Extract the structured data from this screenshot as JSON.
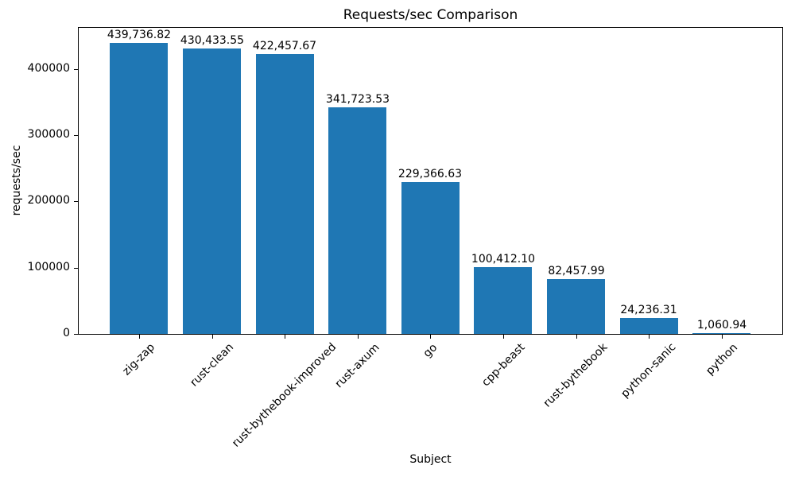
{
  "chart_data": {
    "type": "bar",
    "title": "Requests/sec Comparison",
    "xlabel": "Subject",
    "ylabel": "requests/sec",
    "categories": [
      "zig-zap",
      "rust-clean",
      "rust-bythebook-improved",
      "rust-axum",
      "go",
      "cpp-beast",
      "rust-bythebook",
      "python-sanic",
      "python"
    ],
    "values": [
      439736.82,
      430433.55,
      422457.67,
      341723.53,
      229366.63,
      100412.1,
      82457.99,
      24236.31,
      1060.94
    ],
    "bar_labels": [
      "439,736.82",
      "430,433.55",
      "422,457.67",
      "341,723.53",
      "229,366.63",
      "100,412.10",
      "82,457.99",
      "24,236.31",
      "1,060.94"
    ],
    "yticks": [
      0,
      100000,
      200000,
      300000,
      400000
    ],
    "ytick_labels": [
      "0",
      "100000",
      "200000",
      "300000",
      "400000"
    ],
    "ylim": [
      0,
      462000
    ],
    "xtick_rotation_deg": 45,
    "grid": false,
    "legend": null,
    "bar_color": "#1f77b4",
    "text_color": "#000000",
    "background_color": "#ffffff"
  }
}
